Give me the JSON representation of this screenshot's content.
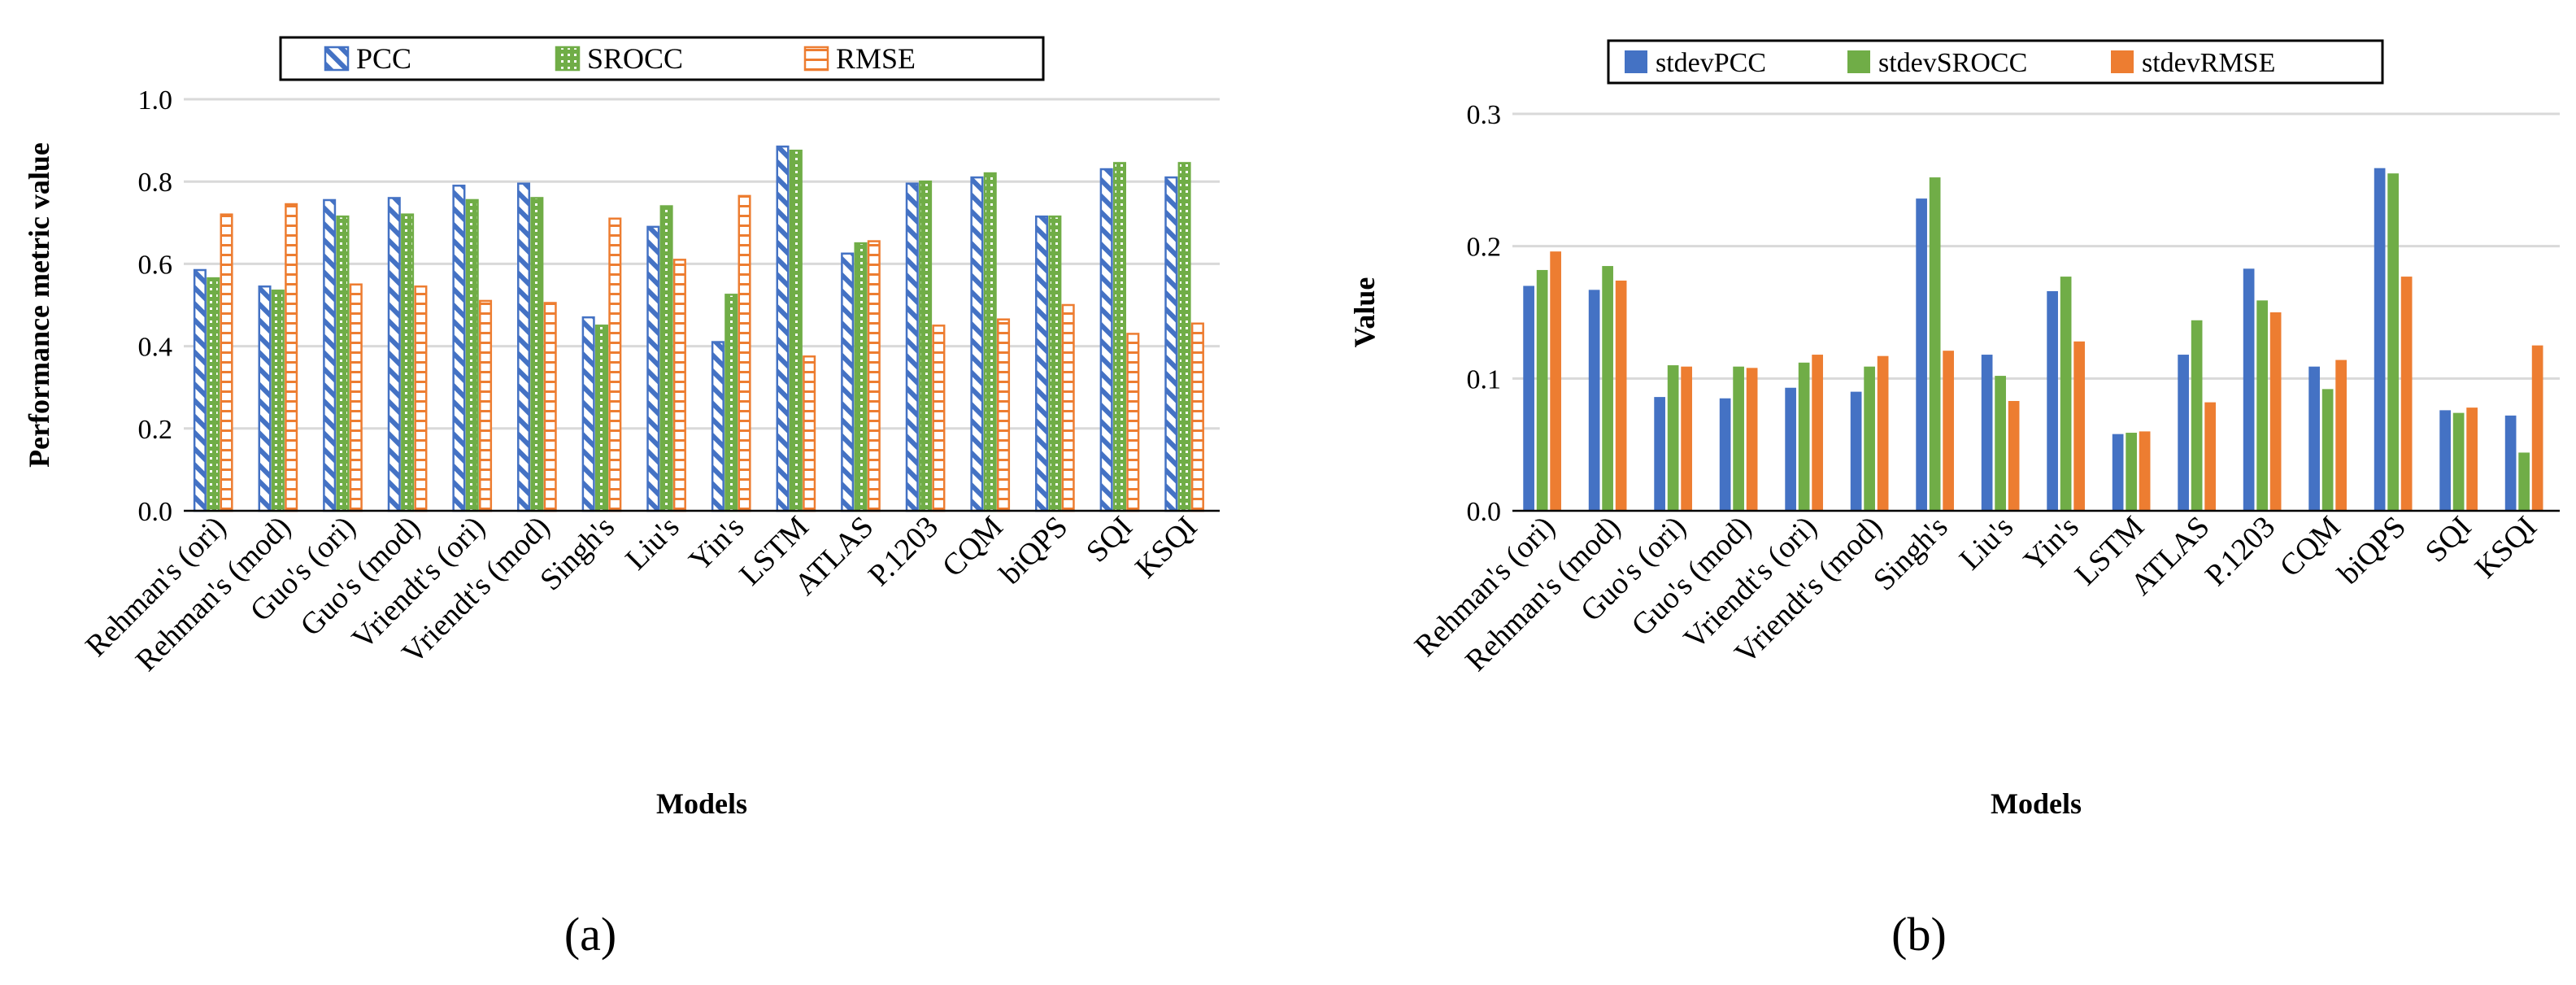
{
  "colors": {
    "pcc": "#4472C4",
    "srocc": "#70AD47",
    "rmse": "#ED7D31",
    "grid": "#D9D9D9",
    "axis": "#000000"
  },
  "captions": {
    "a": "(a)",
    "b": "(b)"
  },
  "chart_data": [
    {
      "id": "a",
      "type": "bar",
      "style": "patterned",
      "title": "",
      "xlabel": "Models",
      "ylabel": "Performance metric value",
      "ylim": [
        0,
        1.0
      ],
      "yticks": [
        "0.0",
        "0.2",
        "0.4",
        "0.6",
        "0.8",
        "1.0"
      ],
      "grid": true,
      "legend_position": "top",
      "categories": [
        "Rehman's (ori)",
        "Rehman's (mod)",
        "Guo's (ori)",
        "Guo's (mod)",
        "Vriendt's (ori)",
        "Vriendt's (mod)",
        "Singh's",
        "Liu's",
        "Yin's",
        "LSTM",
        "ATLAS",
        "P.1203",
        "CQM",
        "biQPS",
        "SQI",
        "KSQI"
      ],
      "series": [
        {
          "name": "PCC",
          "key": "pcc",
          "values": [
            0.585,
            0.545,
            0.755,
            0.76,
            0.79,
            0.795,
            0.47,
            0.69,
            0.41,
            0.885,
            0.625,
            0.795,
            0.81,
            0.715,
            0.83,
            0.81
          ]
        },
        {
          "name": "SROCC",
          "key": "srocc",
          "values": [
            0.565,
            0.535,
            0.715,
            0.72,
            0.755,
            0.76,
            0.45,
            0.74,
            0.525,
            0.875,
            0.65,
            0.8,
            0.82,
            0.715,
            0.845,
            0.845
          ]
        },
        {
          "name": "RMSE",
          "key": "rmse",
          "values": [
            0.72,
            0.745,
            0.55,
            0.545,
            0.51,
            0.505,
            0.71,
            0.61,
            0.765,
            0.375,
            0.655,
            0.45,
            0.465,
            0.5,
            0.43,
            0.455
          ]
        }
      ]
    },
    {
      "id": "b",
      "type": "bar",
      "style": "solid",
      "title": "",
      "xlabel": "Models",
      "ylabel": "Value",
      "ylim": [
        0,
        0.3
      ],
      "yticks": [
        "0.0",
        "0.1",
        "0.2",
        "0.3"
      ],
      "grid": true,
      "legend_position": "top",
      "categories": [
        "Rehman's (ori)",
        "Rehman's (mod)",
        "Guo's (ori)",
        "Guo's (mod)",
        "Vriendt's (ori)",
        "Vriendt's (mod)",
        "Singh's",
        "Liu's",
        "Yin's",
        "LSTM",
        "ATLAS",
        "P.1203",
        "CQM",
        "biQPS",
        "SQI",
        "KSQI"
      ],
      "series": [
        {
          "name": "stdevPCC",
          "key": "pcc",
          "values": [
            0.17,
            0.167,
            0.086,
            0.085,
            0.093,
            0.09,
            0.236,
            0.118,
            0.166,
            0.058,
            0.118,
            0.183,
            0.109,
            0.259,
            0.076,
            0.072
          ]
        },
        {
          "name": "stdevSROCC",
          "key": "srocc",
          "values": [
            0.182,
            0.185,
            0.11,
            0.109,
            0.112,
            0.109,
            0.252,
            0.102,
            0.177,
            0.059,
            0.144,
            0.159,
            0.092,
            0.255,
            0.074,
            0.044
          ]
        },
        {
          "name": "stdevRMSE",
          "key": "rmse",
          "values": [
            0.196,
            0.174,
            0.109,
            0.108,
            0.118,
            0.117,
            0.121,
            0.083,
            0.128,
            0.06,
            0.082,
            0.15,
            0.114,
            0.177,
            0.078,
            0.125
          ]
        }
      ]
    }
  ]
}
